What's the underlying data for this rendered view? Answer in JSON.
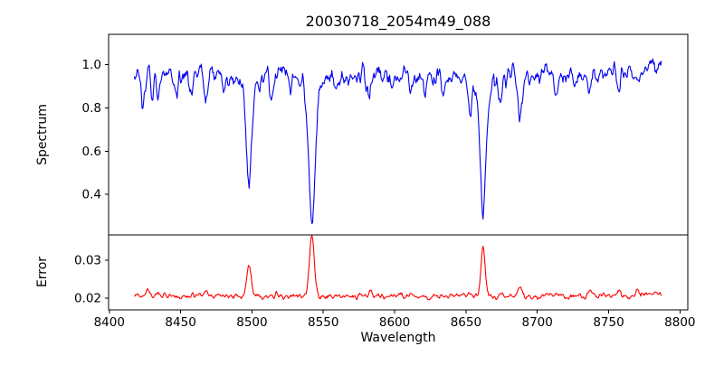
{
  "figure": {
    "background": "#ffffff",
    "axis_color": "#000000",
    "text_color": "#000000"
  },
  "chart_data": {
    "type": "line",
    "title": "20030718_2054m49_088",
    "xlabel": "Wavelength",
    "grid": false,
    "legend": "none",
    "x_lim": [
      8399.5,
      8805.5
    ],
    "x_ticks": [
      {
        "v": 8400,
        "label": "8400"
      },
      {
        "v": 8450,
        "label": "8450"
      },
      {
        "v": 8500,
        "label": "8500"
      },
      {
        "v": 8550,
        "label": "8550"
      },
      {
        "v": 8600,
        "label": "8600"
      },
      {
        "v": 8650,
        "label": "8650"
      },
      {
        "v": 8700,
        "label": "8700"
      },
      {
        "v": 8750,
        "label": "8750"
      },
      {
        "v": 8800,
        "label": "8800"
      }
    ],
    "panels": [
      {
        "name": "spectrum",
        "ylabel": "Spectrum",
        "line_color": "#0000ee",
        "y_lim": [
          0.212,
          1.141
        ],
        "y_ticks": [
          {
            "v": 0.4,
            "label": "0.4"
          },
          {
            "v": 0.6,
            "label": "0.6"
          },
          {
            "v": 0.8,
            "label": "0.8"
          },
          {
            "v": 1.0,
            "label": "1.0"
          }
        ],
        "continuum_level": 0.95,
        "key_features": [
          {
            "feature": "absorption line",
            "wavelength": 8498,
            "min_flux": 0.45
          },
          {
            "feature": "absorption line (deepest)",
            "wavelength": 8542,
            "min_flux": 0.27
          },
          {
            "feature": "absorption line",
            "wavelength": 8662,
            "min_flux": 0.32
          },
          {
            "feature": "absorption line (moderate)",
            "wavelength": 8688,
            "min_flux": 0.73
          }
        ],
        "series": {
          "x_start": 8417.5,
          "x_end": 8787.0,
          "x_step": 0.5,
          "base": 0.952,
          "noise_sigma": 0.021,
          "noise_smooth": 1,
          "seed": 20030718,
          "features": [
            [
              8424,
              -0.12,
              1.2
            ],
            [
              8430,
              -0.1,
              0.9
            ],
            [
              8434,
              -0.13,
              1.0
            ],
            [
              8447,
              -0.07,
              1.0
            ],
            [
              8457,
              -0.06,
              1.0
            ],
            [
              8468,
              -0.13,
              1.2
            ],
            [
              8480,
              -0.05,
              1.0
            ],
            [
              8498,
              -0.46,
              1.9
            ],
            [
              8498,
              -0.05,
              6.0
            ],
            [
              8514,
              -0.09,
              1.3
            ],
            [
              8527,
              -0.06,
              1.0
            ],
            [
              8542,
              -0.62,
              2.2
            ],
            [
              8542,
              -0.06,
              7.0
            ],
            [
              8560,
              -0.05,
              1.0
            ],
            [
              8582,
              -0.12,
              1.2
            ],
            [
              8598,
              -0.07,
              1.0
            ],
            [
              8611,
              -0.1,
              1.1
            ],
            [
              8621,
              -0.1,
              1.0
            ],
            [
              8634,
              -0.06,
              1.0
            ],
            [
              8653,
              -0.18,
              1.3
            ],
            [
              8662,
              -0.58,
              2.1
            ],
            [
              8662,
              -0.05,
              7.0
            ],
            [
              8674,
              -0.14,
              1.1
            ],
            [
              8688,
              -0.21,
              1.7
            ],
            [
              8713,
              -0.08,
              1.1
            ],
            [
              8727,
              -0.06,
              1.0
            ],
            [
              8737,
              -0.09,
              1.1
            ],
            [
              8757,
              -0.09,
              1.1
            ],
            [
              8770,
              -0.06,
              1.0
            ],
            [
              8782,
              0.05,
              6.0
            ]
          ]
        }
      },
      {
        "name": "error",
        "ylabel": "Error",
        "line_color": "#ff0000",
        "y_lim": [
          0.0169,
          0.0367
        ],
        "y_ticks": [
          {
            "v": 0.02,
            "label": "0.02"
          },
          {
            "v": 0.03,
            "label": "0.03"
          }
        ],
        "baseline_level": 0.0205,
        "key_features": [
          {
            "feature": "error peak",
            "wavelength": 8498,
            "max_error": 0.029
          },
          {
            "feature": "error peak (highest)",
            "wavelength": 8542,
            "max_error": 0.0365
          },
          {
            "feature": "error peak",
            "wavelength": 8662,
            "max_error": 0.0335
          },
          {
            "feature": "error peak (small)",
            "wavelength": 8688,
            "max_error": 0.0235
          }
        ],
        "series": {
          "x_start": 8417.5,
          "x_end": 8787.0,
          "x_step": 0.5,
          "base": 0.0205,
          "noise_sigma": 0.00035,
          "noise_smooth": 1,
          "seed": 2054,
          "features": [
            [
              8427,
              0.0018,
              1.3
            ],
            [
              8434,
              0.0012,
              1.0
            ],
            [
              8468,
              0.0015,
              1.2
            ],
            [
              8498,
              0.0085,
              1.5
            ],
            [
              8517,
              0.001,
              1.2
            ],
            [
              8542,
              0.0158,
              1.7
            ],
            [
              8560,
              0.0006,
              1.0
            ],
            [
              8583,
              0.0014,
              1.2
            ],
            [
              8611,
              0.0008,
              1.0
            ],
            [
              8648,
              0.001,
              1.2
            ],
            [
              8662,
              0.0128,
              1.5
            ],
            [
              8675,
              0.001,
              1.0
            ],
            [
              8688,
              0.003,
              1.3
            ],
            [
              8713,
              0.0008,
              1.0
            ],
            [
              8737,
              0.0014,
              1.1
            ],
            [
              8757,
              0.0016,
              1.1
            ],
            [
              8770,
              0.001,
              1.0
            ],
            [
              8780,
              0.0008,
              8.0
            ]
          ]
        }
      }
    ]
  }
}
